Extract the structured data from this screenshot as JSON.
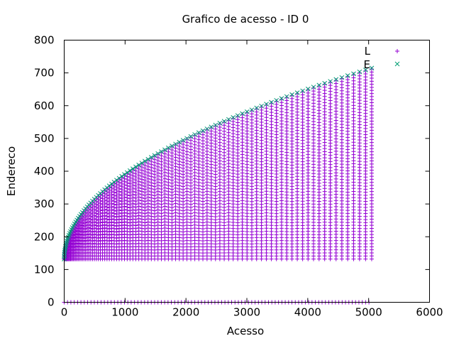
{
  "chart_data": {
    "type": "scatter",
    "title": "Grafico de acesso - ID 0",
    "xlabel": "Acesso",
    "ylabel": "Endereco",
    "xlim": [
      0,
      6000
    ],
    "ylim": [
      0,
      800
    ],
    "xticks": [
      "0",
      "1000",
      "2000",
      "3000",
      "4000",
      "5000",
      "6000"
    ],
    "yticks": [
      "0",
      "100",
      "200",
      "300",
      "400",
      "500",
      "600",
      "700",
      "800"
    ],
    "grid": false,
    "legend_position": "top-right",
    "series": [
      {
        "name": "L",
        "marker": "plus",
        "color": "#9400d3",
        "pattern": "triangular sweep: for each column i (x = i*(i+1)/2, i = 0..100) addresses run from 132 to 132+5.8*i; plus a row of points at address 0",
        "x_range": [
          0,
          5050
        ],
        "y_range": [
          132,
          716
        ],
        "zero_row_y": 0
      },
      {
        "name": "E",
        "marker": "cross",
        "color": "#009e73",
        "pattern": "upper envelope: y ≈ 132 + 8.2*sqrt(x), x from 0 to 5050",
        "x_range": [
          0,
          5050
        ],
        "y_range": [
          132,
          716
        ]
      }
    ]
  }
}
